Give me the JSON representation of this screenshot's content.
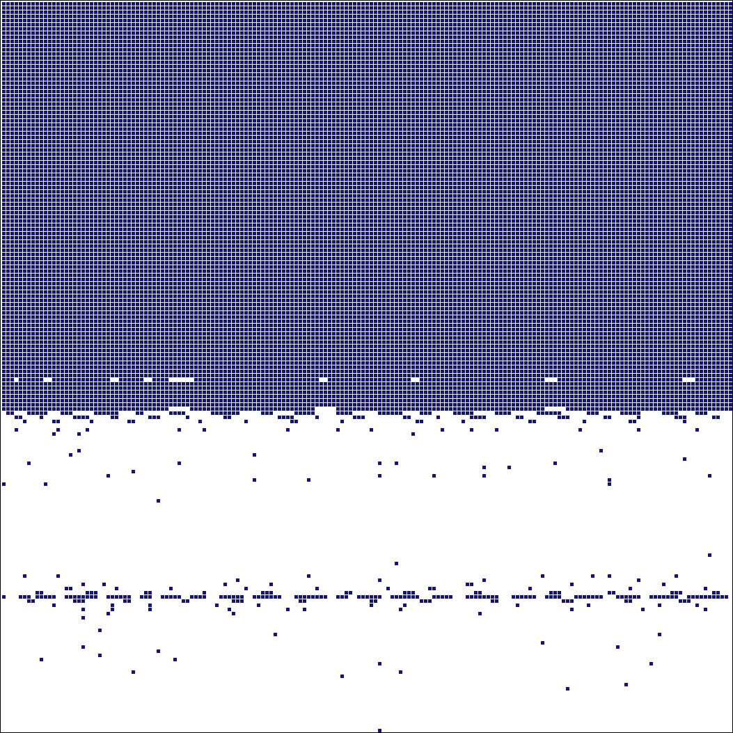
{
  "grid": {
    "columns": 175,
    "rows": 175,
    "cell_color": "#10108c",
    "runs": [
      [
        0,
        0,
        175,
        90
      ],
      [
        90,
        0,
        3,
        1
      ],
      [
        90,
        4,
        6,
        1
      ],
      [
        90,
        12,
        14,
        1
      ],
      [
        90,
        28,
        6,
        1
      ],
      [
        90,
        36,
        4,
        1
      ],
      [
        90,
        46,
        30,
        1
      ],
      [
        90,
        78,
        20,
        1
      ],
      [
        90,
        100,
        30,
        1
      ],
      [
        90,
        133,
        30,
        1
      ],
      [
        90,
        166,
        9,
        1
      ],
      [
        91,
        0,
        175,
        6
      ],
      [
        97,
        0,
        40,
        1
      ],
      [
        97,
        45,
        30,
        1
      ],
      [
        97,
        80,
        50,
        1
      ],
      [
        97,
        135,
        40,
        1
      ],
      [
        98,
        1,
        2,
        1
      ],
      [
        98,
        6,
        5,
        1
      ],
      [
        98,
        14,
        3,
        1
      ],
      [
        98,
        22,
        6,
        1
      ],
      [
        98,
        32,
        2,
        1
      ],
      [
        98,
        40,
        4,
        1
      ],
      [
        98,
        50,
        7,
        1
      ],
      [
        98,
        62,
        3,
        1
      ],
      [
        98,
        70,
        5,
        1
      ],
      [
        98,
        80,
        4,
        1
      ],
      [
        98,
        90,
        6,
        1
      ],
      [
        98,
        100,
        3,
        1
      ],
      [
        98,
        108,
        5,
        1
      ],
      [
        98,
        118,
        4,
        1
      ],
      [
        98,
        128,
        6,
        1
      ],
      [
        98,
        140,
        3,
        1
      ],
      [
        98,
        148,
        5,
        1
      ],
      [
        98,
        158,
        4,
        1
      ],
      [
        98,
        166,
        3,
        1
      ],
      [
        99,
        3,
        2,
        1
      ],
      [
        99,
        9,
        1,
        1
      ],
      [
        99,
        17,
        4,
        1
      ],
      [
        99,
        26,
        2,
        1
      ],
      [
        99,
        35,
        3,
        1
      ],
      [
        99,
        44,
        1,
        1
      ],
      [
        99,
        53,
        2,
        1
      ],
      [
        99,
        66,
        4,
        1
      ],
      [
        99,
        75,
        1,
        1
      ],
      [
        99,
        84,
        3,
        1
      ],
      [
        99,
        96,
        2,
        1
      ],
      [
        99,
        104,
        1,
        1
      ],
      [
        99,
        112,
        4,
        1
      ],
      [
        99,
        123,
        2,
        1
      ],
      [
        99,
        133,
        3,
        1
      ],
      [
        99,
        144,
        2,
        1
      ],
      [
        99,
        152,
        1,
        1
      ],
      [
        99,
        161,
        3,
        1
      ],
      [
        99,
        170,
        2,
        1
      ],
      [
        100,
        5,
        1,
        1
      ],
      [
        100,
        12,
        2,
        1
      ],
      [
        100,
        21,
        1,
        1
      ],
      [
        100,
        30,
        2,
        1
      ],
      [
        100,
        47,
        1,
        1
      ],
      [
        100,
        58,
        1,
        1
      ],
      [
        100,
        69,
        2,
        1
      ],
      [
        100,
        81,
        1,
        1
      ],
      [
        100,
        99,
        2,
        1
      ],
      [
        100,
        110,
        1,
        1
      ],
      [
        100,
        126,
        2,
        1
      ],
      [
        100,
        139,
        1,
        1
      ],
      [
        100,
        150,
        2,
        1
      ],
      [
        100,
        163,
        1,
        1
      ],
      [
        102,
        3,
        1,
        1
      ],
      [
        102,
        13,
        1,
        1
      ],
      [
        102,
        20,
        1,
        1
      ],
      [
        102,
        42,
        1,
        1
      ],
      [
        102,
        48,
        1,
        1
      ],
      [
        102,
        68,
        1,
        1
      ],
      [
        102,
        80,
        1,
        1
      ],
      [
        102,
        88,
        1,
        1
      ],
      [
        102,
        105,
        1,
        1
      ],
      [
        102,
        112,
        1,
        1
      ],
      [
        102,
        118,
        1,
        1
      ],
      [
        102,
        138,
        1,
        1
      ],
      [
        102,
        152,
        1,
        1
      ],
      [
        102,
        166,
        1,
        1
      ],
      [
        103,
        12,
        1,
        1
      ],
      [
        103,
        18,
        1,
        1
      ],
      [
        103,
        98,
        1,
        1
      ],
      [
        107,
        18,
        1,
        1
      ],
      [
        107,
        143,
        1,
        1
      ],
      [
        108,
        16,
        1,
        1
      ],
      [
        108,
        60,
        1,
        1
      ],
      [
        109,
        163,
        1,
        1
      ],
      [
        110,
        6,
        1,
        1
      ],
      [
        110,
        42,
        1,
        1
      ],
      [
        110,
        90,
        1,
        1
      ],
      [
        110,
        94,
        1,
        1
      ],
      [
        110,
        132,
        1,
        1
      ],
      [
        111,
        115,
        1,
        1
      ],
      [
        111,
        121,
        1,
        1
      ],
      [
        112,
        31,
        1,
        1
      ],
      [
        113,
        25,
        1,
        1
      ],
      [
        113,
        90,
        1,
        1
      ],
      [
        113,
        103,
        1,
        1
      ],
      [
        113,
        115,
        1,
        1
      ],
      [
        113,
        169,
        1,
        1
      ],
      [
        114,
        60,
        1,
        1
      ],
      [
        114,
        73,
        1,
        1
      ],
      [
        114,
        145,
        1,
        1
      ],
      [
        115,
        0,
        1,
        1
      ],
      [
        115,
        10,
        1,
        1
      ],
      [
        115,
        145,
        1,
        1
      ],
      [
        119,
        37,
        1,
        1
      ],
      [
        132,
        169,
        1,
        1
      ],
      [
        134,
        94,
        1,
        1
      ],
      [
        137,
        5,
        1,
        1
      ],
      [
        137,
        13,
        1,
        1
      ],
      [
        137,
        73,
        1,
        1
      ],
      [
        137,
        129,
        1,
        1
      ],
      [
        137,
        141,
        1,
        1
      ],
      [
        137,
        145,
        1,
        1
      ],
      [
        137,
        161,
        1,
        1
      ],
      [
        138,
        56,
        1,
        1
      ],
      [
        138,
        90,
        1,
        1
      ],
      [
        138,
        115,
        1,
        1
      ],
      [
        138,
        152,
        1,
        1
      ],
      [
        139,
        19,
        1,
        1
      ],
      [
        139,
        24,
        1,
        1
      ],
      [
        139,
        53,
        1,
        1
      ],
      [
        139,
        64,
        1,
        1
      ],
      [
        139,
        111,
        2,
        1
      ],
      [
        139,
        136,
        1,
        1
      ],
      [
        139,
        158,
        1,
        1
      ],
      [
        140,
        15,
        2,
        1
      ],
      [
        140,
        27,
        1,
        1
      ],
      [
        140,
        40,
        1,
        1
      ],
      [
        140,
        58,
        1,
        1
      ],
      [
        140,
        75,
        1,
        1
      ],
      [
        140,
        92,
        1,
        1
      ],
      [
        140,
        102,
        2,
        1
      ],
      [
        140,
        126,
        1,
        1
      ],
      [
        140,
        150,
        1,
        1
      ],
      [
        140,
        168,
        1,
        1
      ],
      [
        141,
        8,
        2,
        1
      ],
      [
        141,
        20,
        3,
        1
      ],
      [
        141,
        34,
        2,
        1
      ],
      [
        141,
        48,
        1,
        1
      ],
      [
        141,
        62,
        3,
        1
      ],
      [
        141,
        82,
        2,
        1
      ],
      [
        141,
        96,
        3,
        1
      ],
      [
        141,
        113,
        2,
        1
      ],
      [
        141,
        131,
        3,
        1
      ],
      [
        141,
        145,
        2,
        1
      ],
      [
        141,
        160,
        3,
        1
      ],
      [
        141,
        170,
        2,
        1
      ],
      [
        142,
        0,
        1,
        1
      ],
      [
        142,
        4,
        3,
        1
      ],
      [
        142,
        8,
        5,
        1
      ],
      [
        142,
        15,
        8,
        1
      ],
      [
        142,
        25,
        6,
        1
      ],
      [
        142,
        33,
        3,
        1
      ],
      [
        142,
        38,
        5,
        1
      ],
      [
        142,
        45,
        4,
        1
      ],
      [
        142,
        52,
        6,
        1
      ],
      [
        142,
        60,
        7,
        1
      ],
      [
        142,
        70,
        8,
        1
      ],
      [
        142,
        80,
        3,
        1
      ],
      [
        142,
        85,
        6,
        1
      ],
      [
        142,
        93,
        7,
        1
      ],
      [
        142,
        103,
        5,
        1
      ],
      [
        142,
        111,
        8,
        1
      ],
      [
        142,
        122,
        6,
        1
      ],
      [
        142,
        130,
        4,
        1
      ],
      [
        142,
        137,
        7,
        1
      ],
      [
        142,
        147,
        6,
        1
      ],
      [
        142,
        155,
        7,
        1
      ],
      [
        142,
        164,
        10,
        1
      ],
      [
        143,
        6,
        2,
        1
      ],
      [
        143,
        17,
        3,
        1
      ],
      [
        143,
        29,
        2,
        1
      ],
      [
        143,
        43,
        2,
        1
      ],
      [
        143,
        55,
        3,
        1
      ],
      [
        143,
        71,
        2,
        1
      ],
      [
        143,
        88,
        2,
        1
      ],
      [
        143,
        100,
        3,
        1
      ],
      [
        143,
        117,
        2,
        1
      ],
      [
        143,
        134,
        3,
        1
      ],
      [
        143,
        149,
        2,
        1
      ],
      [
        143,
        162,
        3,
        1
      ],
      [
        144,
        12,
        1,
        1
      ],
      [
        144,
        26,
        1,
        1
      ],
      [
        144,
        35,
        1,
        1
      ],
      [
        144,
        51,
        1,
        1
      ],
      [
        144,
        61,
        1,
        1
      ],
      [
        144,
        88,
        1,
        1
      ],
      [
        144,
        96,
        1,
        1
      ],
      [
        144,
        123,
        1,
        1
      ],
      [
        144,
        140,
        1,
        1
      ],
      [
        144,
        157,
        1,
        1
      ],
      [
        144,
        166,
        1,
        1
      ],
      [
        145,
        19,
        1,
        1
      ],
      [
        145,
        26,
        1,
        1
      ],
      [
        145,
        35,
        1,
        1
      ],
      [
        145,
        54,
        1,
        1
      ],
      [
        145,
        68,
        1,
        1
      ],
      [
        145,
        72,
        1,
        1
      ],
      [
        145,
        95,
        1,
        1
      ],
      [
        145,
        136,
        1,
        1
      ],
      [
        145,
        153,
        1,
        1
      ],
      [
        145,
        168,
        1,
        1
      ],
      [
        146,
        25,
        1,
        1
      ],
      [
        146,
        55,
        1,
        1
      ],
      [
        146,
        114,
        1,
        1
      ],
      [
        147,
        19,
        1,
        1
      ],
      [
        150,
        23,
        1,
        1
      ],
      [
        151,
        65,
        1,
        1
      ],
      [
        151,
        157,
        1,
        1
      ],
      [
        153,
        129,
        1,
        1
      ],
      [
        154,
        19,
        1,
        1
      ],
      [
        154,
        147,
        1,
        1
      ],
      [
        155,
        37,
        1,
        1
      ],
      [
        156,
        23,
        1,
        1
      ],
      [
        157,
        9,
        1,
        1
      ],
      [
        157,
        41,
        1,
        1
      ],
      [
        158,
        90,
        1,
        1
      ],
      [
        158,
        155,
        1,
        1
      ],
      [
        160,
        31,
        1,
        1
      ],
      [
        160,
        95,
        1,
        1
      ],
      [
        161,
        81,
        1,
        1
      ],
      [
        163,
        149,
        1,
        1
      ],
      [
        164,
        135,
        1,
        1
      ],
      [
        174,
        90,
        1,
        1
      ]
    ]
  }
}
